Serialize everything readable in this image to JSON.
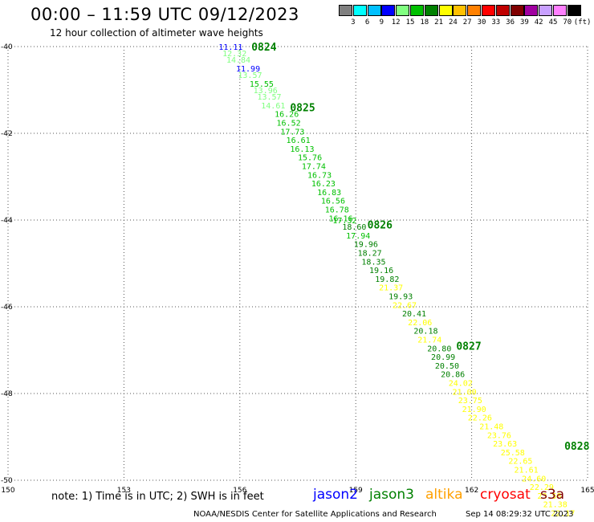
{
  "header": {
    "title": "00:00 – 11:59 UTC 09/12/2023",
    "subtitle": "12 hour collection of altimeter wave heights"
  },
  "colorbar": {
    "colors": [
      "#808080",
      "#00ffff",
      "#00c0ff",
      "#0000ff",
      "#80ff80",
      "#00c000",
      "#008000",
      "#ffff00",
      "#ffc000",
      "#ff8000",
      "#ff0000",
      "#c00000",
      "#800000",
      "#a000a0",
      "#c8a0ff",
      "#ff80ff",
      "#000000"
    ],
    "labels": [
      "3",
      "6",
      "9",
      "12",
      "15",
      "18",
      "21",
      "24",
      "27",
      "30",
      "33",
      "36",
      "39",
      "42",
      "45",
      "70"
    ],
    "unit": "(ft)"
  },
  "chart_data": {
    "type": "scatter",
    "title": "00:00 – 11:59 UTC 09/12/2023",
    "xlim": [
      150,
      165
    ],
    "ylim": [
      -50,
      -40
    ],
    "x_ticks": [
      "150",
      "153",
      "156",
      "159",
      "162",
      "165"
    ],
    "y_ticks": [
      "-40",
      "-42",
      "-44",
      "-46",
      "-48",
      "-50"
    ],
    "grid": true,
    "time_labels": [
      {
        "text": "0824",
        "x": 156.3,
        "y": -40.0
      },
      {
        "text": "0825",
        "x": 157.3,
        "y": -41.4
      },
      {
        "text": "0826",
        "x": 159.3,
        "y": -44.1
      },
      {
        "text": "0827",
        "x": 161.6,
        "y": -46.9
      },
      {
        "text": "0828",
        "x": 164.4,
        "y": -49.2
      }
    ],
    "points": [
      {
        "x": 155.45,
        "y": -40.0,
        "v": "11.11",
        "c": "#0000ff"
      },
      {
        "x": 155.55,
        "y": -40.15,
        "v": "12.32",
        "c": "#80ff80"
      },
      {
        "x": 155.65,
        "y": -40.3,
        "v": "14.84",
        "c": "#80ff80"
      },
      {
        "x": 155.9,
        "y": -40.5,
        "v": "11.99",
        "c": "#0000ff"
      },
      {
        "x": 155.95,
        "y": -40.65,
        "v": "13.57",
        "c": "#80ff80"
      },
      {
        "x": 156.25,
        "y": -40.85,
        "v": "15.55",
        "c": "#00c000"
      },
      {
        "x": 156.35,
        "y": -41.0,
        "v": "13.96",
        "c": "#80ff80"
      },
      {
        "x": 156.45,
        "y": -41.15,
        "v": "13.57",
        "c": "#80ff80"
      },
      {
        "x": 156.55,
        "y": -41.35,
        "v": "14.61",
        "c": "#80ff80"
      },
      {
        "x": 156.9,
        "y": -41.55,
        "v": "16.26",
        "c": "#00c000"
      },
      {
        "x": 156.95,
        "y": -41.75,
        "v": "16.52",
        "c": "#00c000"
      },
      {
        "x": 157.05,
        "y": -41.95,
        "v": "17.73",
        "c": "#00c000"
      },
      {
        "x": 157.2,
        "y": -42.15,
        "v": "16.61",
        "c": "#00c000"
      },
      {
        "x": 157.3,
        "y": -42.35,
        "v": "16.13",
        "c": "#00c000"
      },
      {
        "x": 157.5,
        "y": -42.55,
        "v": "15.76",
        "c": "#00c000"
      },
      {
        "x": 157.6,
        "y": -42.75,
        "v": "17.74",
        "c": "#00c000"
      },
      {
        "x": 157.75,
        "y": -42.95,
        "v": "16.73",
        "c": "#00c000"
      },
      {
        "x": 157.85,
        "y": -43.15,
        "v": "16.23",
        "c": "#00c000"
      },
      {
        "x": 158.0,
        "y": -43.35,
        "v": "16.83",
        "c": "#00c000"
      },
      {
        "x": 158.1,
        "y": -43.55,
        "v": "16.56",
        "c": "#00c000"
      },
      {
        "x": 158.2,
        "y": -43.75,
        "v": "16.78",
        "c": "#00c000"
      },
      {
        "x": 158.3,
        "y": -43.95,
        "v": "16.16",
        "c": "#00c000"
      },
      {
        "x": 158.4,
        "y": -44.0,
        "v": "17.32",
        "c": "#00c000"
      },
      {
        "x": 158.65,
        "y": -44.15,
        "v": "18.60",
        "c": "#008000"
      },
      {
        "x": 158.75,
        "y": -44.35,
        "v": "17.94",
        "c": "#00c000"
      },
      {
        "x": 158.95,
        "y": -44.55,
        "v": "19.96",
        "c": "#008000"
      },
      {
        "x": 159.05,
        "y": -44.75,
        "v": "18.27",
        "c": "#008000"
      },
      {
        "x": 159.15,
        "y": -44.95,
        "v": "18.35",
        "c": "#008000"
      },
      {
        "x": 159.35,
        "y": -45.15,
        "v": "19.16",
        "c": "#008000"
      },
      {
        "x": 159.5,
        "y": -45.35,
        "v": "19.82",
        "c": "#008000"
      },
      {
        "x": 159.6,
        "y": -45.55,
        "v": "21.37",
        "c": "#ffff00"
      },
      {
        "x": 159.85,
        "y": -45.75,
        "v": "19.93",
        "c": "#008000"
      },
      {
        "x": 159.95,
        "y": -45.95,
        "v": "22.67",
        "c": "#ffff00"
      },
      {
        "x": 160.2,
        "y": -46.15,
        "v": "20.41",
        "c": "#008000"
      },
      {
        "x": 160.35,
        "y": -46.35,
        "v": "22.06",
        "c": "#ffff00"
      },
      {
        "x": 160.5,
        "y": -46.55,
        "v": "20.18",
        "c": "#008000"
      },
      {
        "x": 160.6,
        "y": -46.75,
        "v": "21.74",
        "c": "#ffff00"
      },
      {
        "x": 160.85,
        "y": -46.95,
        "v": "20.80",
        "c": "#008000"
      },
      {
        "x": 160.95,
        "y": -47.15,
        "v": "20.99",
        "c": "#008000"
      },
      {
        "x": 161.05,
        "y": -47.35,
        "v": "20.50",
        "c": "#008000"
      },
      {
        "x": 161.2,
        "y": -47.55,
        "v": "20.86",
        "c": "#008000"
      },
      {
        "x": 161.4,
        "y": -47.75,
        "v": "24.02",
        "c": "#ffff00"
      },
      {
        "x": 161.5,
        "y": -47.95,
        "v": "21.00",
        "c": "#ffff00"
      },
      {
        "x": 161.65,
        "y": -48.15,
        "v": "23.75",
        "c": "#ffff00"
      },
      {
        "x": 161.75,
        "y": -48.35,
        "v": "21.90",
        "c": "#ffff00"
      },
      {
        "x": 161.9,
        "y": -48.55,
        "v": "22.26",
        "c": "#ffff00"
      },
      {
        "x": 162.2,
        "y": -48.75,
        "v": "21.48",
        "c": "#ffff00"
      },
      {
        "x": 162.4,
        "y": -48.95,
        "v": "23.76",
        "c": "#ffff00"
      },
      {
        "x": 162.55,
        "y": -49.15,
        "v": "23.63",
        "c": "#ffff00"
      },
      {
        "x": 162.75,
        "y": -49.35,
        "v": "25.58",
        "c": "#ffff00"
      },
      {
        "x": 162.95,
        "y": -49.55,
        "v": "22.65",
        "c": "#ffff00"
      },
      {
        "x": 163.1,
        "y": -49.75,
        "v": "21.61",
        "c": "#ffff00"
      },
      {
        "x": 163.3,
        "y": -49.95,
        "v": "24.60",
        "c": "#ffff00"
      },
      {
        "x": 163.5,
        "y": -50.15,
        "v": "22.29",
        "c": "#ffff00"
      },
      {
        "x": 163.7,
        "y": -50.35,
        "v": "23.58",
        "c": "#ffff00"
      },
      {
        "x": 163.85,
        "y": -50.55,
        "v": "21.38",
        "c": "#ffff00"
      },
      {
        "x": 164.05,
        "y": -50.75,
        "v": "22.17",
        "c": "#ffff00"
      }
    ]
  },
  "note": "note: 1) Time is in UTC; 2) SWH is in feet",
  "legend": [
    {
      "name": "jason2",
      "color": "#0000ff"
    },
    {
      "name": "jason3",
      "color": "#008000"
    },
    {
      "name": "altika",
      "color": "#ffa000"
    },
    {
      "name": "cryosat",
      "color": "#ff0000"
    },
    {
      "name": "s3a",
      "color": "#800000"
    }
  ],
  "footer": {
    "credit": "NOAA/NESDIS Center for Satellite Applications and Research",
    "timestamp": "Sep 14 08:29:32 UTC 2023"
  }
}
